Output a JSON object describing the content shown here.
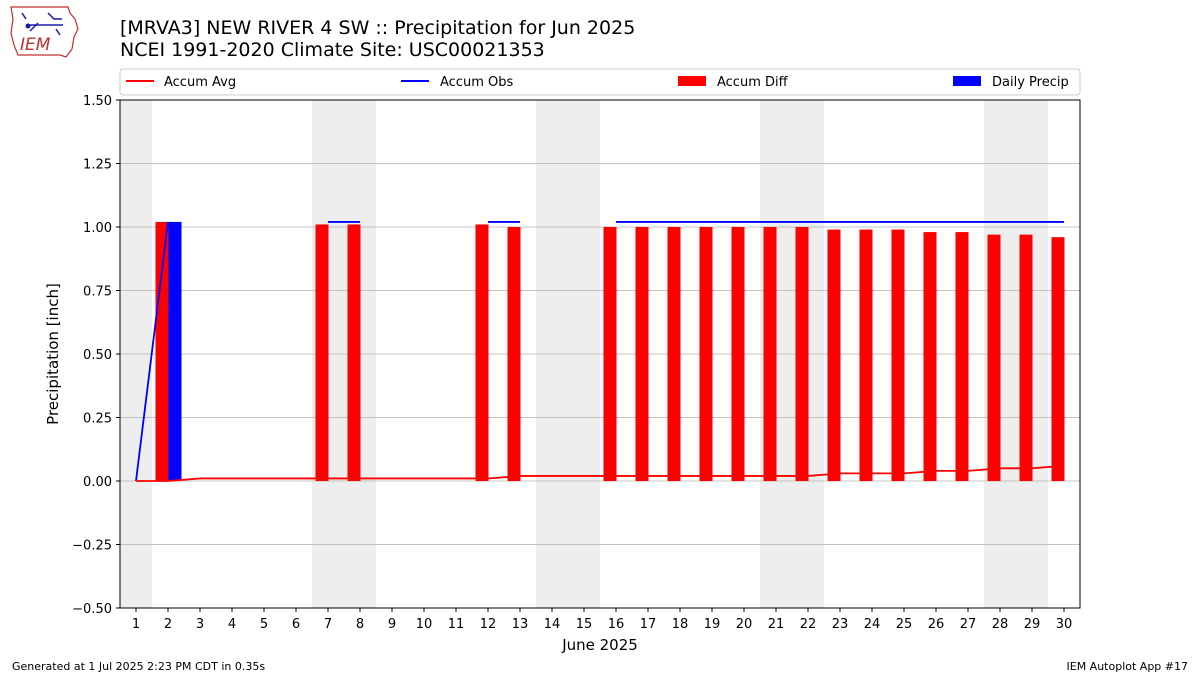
{
  "header": {
    "logo_text": "IEM",
    "title_line1": "[MRVA3] NEW RIVER 4 SW :: Precipitation for Jun 2025",
    "title_line2": "NCEI 1991-2020 Climate Site: USC00021353"
  },
  "footer": {
    "left": "Generated at 1 Jul 2025 2:23 PM CDT in 0.35s",
    "right": "IEM Autoplot App #17"
  },
  "colors": {
    "accum_avg": "#ff0000",
    "accum_obs": "#0000ff",
    "accum_diff": "#ff0000",
    "daily_precip": "#0000ff",
    "weekend_band": "#eeeeee",
    "grid": "#b0b0b0"
  },
  "chart_data": {
    "type": "bar",
    "xlabel": "June 2025",
    "ylabel": "Precipitation [inch]",
    "ylim": [
      -0.5,
      1.5
    ],
    "yticks": [
      -0.5,
      -0.25,
      0.0,
      0.25,
      0.5,
      0.75,
      1.0,
      1.25,
      1.5
    ],
    "ytick_labels": [
      "−0.50",
      "−0.25",
      "0.00",
      "0.25",
      "0.50",
      "0.75",
      "1.00",
      "1.25",
      "1.50"
    ],
    "days": [
      1,
      2,
      3,
      4,
      5,
      6,
      7,
      8,
      9,
      10,
      11,
      12,
      13,
      14,
      15,
      16,
      17,
      18,
      19,
      20,
      21,
      22,
      23,
      24,
      25,
      26,
      27,
      28,
      29,
      30
    ],
    "weekend_days": [
      1,
      7,
      8,
      14,
      15,
      21,
      22,
      28,
      29
    ],
    "grid": "horizontal",
    "legend_position": "top",
    "legend": [
      "Accum Avg",
      "Accum Obs",
      "Accum Diff",
      "Daily Precip"
    ],
    "series": [
      {
        "name": "Accum Avg",
        "kind": "line",
        "values": [
          0.0,
          0.0,
          0.01,
          0.01,
          0.01,
          0.01,
          0.01,
          0.01,
          0.01,
          0.01,
          0.01,
          0.01,
          0.02,
          0.02,
          0.02,
          0.02,
          0.02,
          0.02,
          0.02,
          0.02,
          0.02,
          0.02,
          0.03,
          0.03,
          0.03,
          0.04,
          0.04,
          0.05,
          0.05,
          0.06
        ]
      },
      {
        "name": "Accum Obs",
        "kind": "line",
        "values": [
          0.0,
          1.02,
          null,
          null,
          null,
          null,
          1.02,
          1.02,
          null,
          null,
          null,
          1.02,
          1.02,
          null,
          null,
          1.02,
          1.02,
          1.02,
          1.02,
          1.02,
          1.02,
          1.02,
          1.02,
          1.02,
          1.02,
          1.02,
          1.02,
          1.02,
          1.02,
          1.02
        ]
      },
      {
        "name": "Accum Diff",
        "kind": "bar",
        "values": [
          null,
          1.02,
          null,
          null,
          null,
          null,
          1.01,
          1.01,
          null,
          null,
          null,
          1.01,
          1.0,
          null,
          null,
          1.0,
          1.0,
          1.0,
          1.0,
          1.0,
          1.0,
          1.0,
          0.99,
          0.99,
          0.99,
          0.98,
          0.98,
          0.97,
          0.97,
          0.96
        ]
      },
      {
        "name": "Daily Precip",
        "kind": "bar",
        "values": [
          0.0,
          1.02,
          0,
          0,
          0,
          0,
          0,
          0,
          0,
          0,
          0,
          0,
          0,
          0,
          0,
          0,
          0,
          0,
          0,
          0,
          0,
          0,
          0,
          0,
          0,
          0,
          0,
          0,
          0,
          0
        ]
      }
    ]
  }
}
